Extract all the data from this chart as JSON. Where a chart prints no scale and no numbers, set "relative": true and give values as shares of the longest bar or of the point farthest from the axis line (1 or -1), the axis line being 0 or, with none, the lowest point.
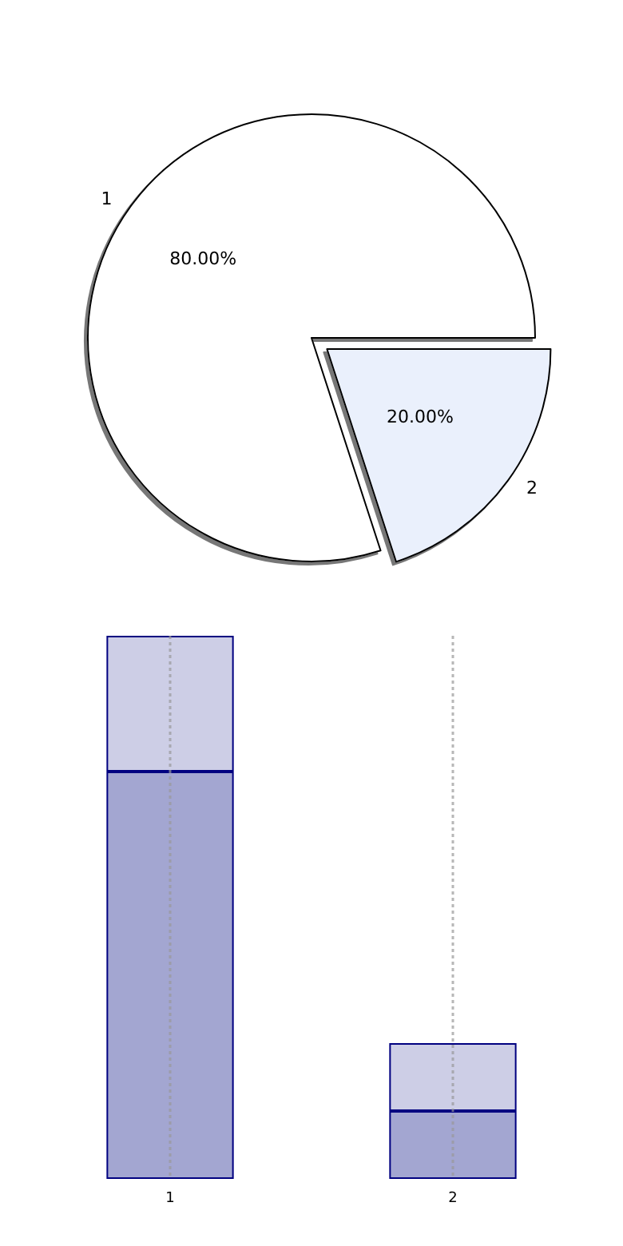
{
  "chart_data": [
    {
      "type": "pie",
      "categories": [
        "1",
        "2"
      ],
      "values": [
        80,
        20
      ],
      "colors": [
        "#ffffff",
        "#eaf0fc"
      ],
      "value_labels": [
        "80.00%",
        "20.00%"
      ]
    },
    {
      "type": "bar",
      "categories": [
        "1",
        "2"
      ],
      "stacked": true,
      "relative": true,
      "grid": "x",
      "series": [
        {
          "color": "#a3a6d1",
          "values": [
            0.75,
            0.125
          ]
        },
        {
          "color": "#cdcee6",
          "values": [
            0.25,
            0.125
          ]
        }
      ]
    }
  ]
}
